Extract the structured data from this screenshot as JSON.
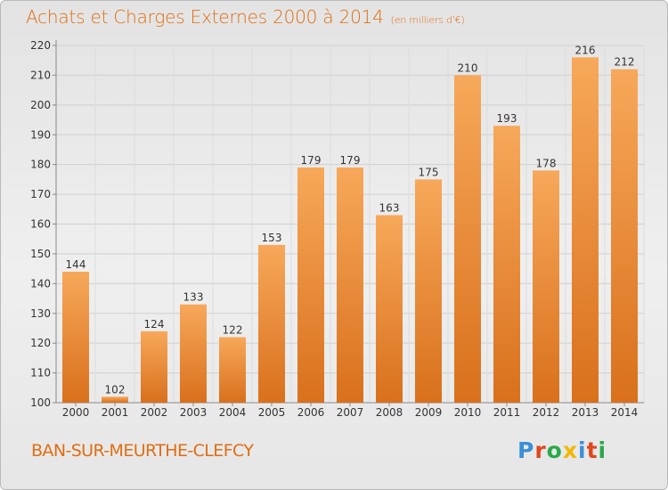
{
  "header": {
    "title": "Achats et Charges Externes 2000 à 2014",
    "unit_note": "(en milliers d'€)"
  },
  "footer": {
    "commune": "BAN-SUR-MEURTHE-CLEFCY",
    "logo_text": "Proxiti"
  },
  "colors": {
    "accent": "#e06d12",
    "bar_light": "#f7a85a",
    "bar_dark": "#d9701c",
    "logo": [
      "#3a8fd8",
      "#e0471c",
      "#2aa84a",
      "#f2b800",
      "#3a8fd8",
      "#e0471c",
      "#2aa84a"
    ]
  },
  "chart_data": {
    "type": "bar",
    "title": "Achats et Charges Externes 2000 à 2014",
    "subtitle": "(en milliers d'€)",
    "categories": [
      "2000",
      "2001",
      "2002",
      "2003",
      "2004",
      "2005",
      "2006",
      "2007",
      "2008",
      "2009",
      "2010",
      "2011",
      "2012",
      "2013",
      "2014"
    ],
    "values": [
      144,
      102,
      124,
      133,
      122,
      153,
      179,
      179,
      163,
      175,
      210,
      193,
      178,
      216,
      212
    ],
    "ylim": [
      100,
      220
    ],
    "yticks": [
      100,
      110,
      120,
      130,
      140,
      150,
      160,
      170,
      180,
      190,
      200,
      210,
      220
    ],
    "grid": true,
    "data_labels": true
  }
}
